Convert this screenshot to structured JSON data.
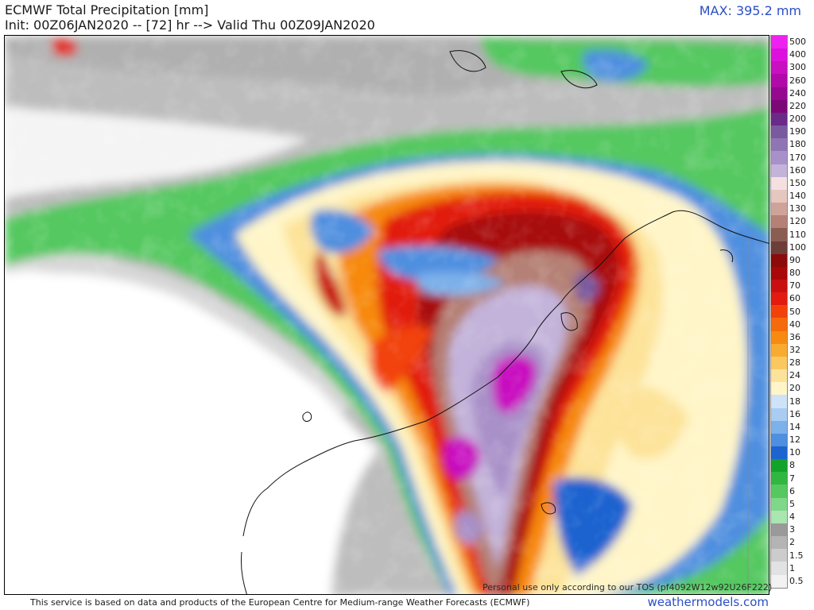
{
  "header": {
    "title": "ECMWF Total Precipitation [mm]",
    "subtitle": "Init: 00Z06JAN2020 -- [72] hr --> Valid Thu 00Z09JAN2020",
    "max_label": "MAX: 395.2 mm"
  },
  "map": {
    "watermark": "Personal use only according to our TOS (pf4092W12w92U26F222)"
  },
  "colorbar": {
    "levels": [
      "500",
      "400",
      "300",
      "260",
      "240",
      "220",
      "200",
      "190",
      "180",
      "170",
      "160",
      "150",
      "140",
      "130",
      "120",
      "110",
      "100",
      "90",
      "80",
      "70",
      "60",
      "50",
      "40",
      "36",
      "32",
      "28",
      "24",
      "20",
      "18",
      "16",
      "14",
      "12",
      "10",
      "8",
      "7",
      "6",
      "5",
      "4",
      "3",
      "2",
      "1.5",
      "1",
      "0.5"
    ],
    "colors": [
      "#ee22ee",
      "#dd11dd",
      "#c810c0",
      "#b00aa8",
      "#960890",
      "#7c0878",
      "#6a2a88",
      "#7a5a9e",
      "#8f75b3",
      "#a890c8",
      "#c3b3da",
      "#f4e0e0",
      "#e6c7c0",
      "#cfa39a",
      "#b58075",
      "#8a5c52",
      "#6d3e38",
      "#8c0a0a",
      "#a80808",
      "#c81010",
      "#e21a10",
      "#f2420a",
      "#f56a0a",
      "#f78a10",
      "#f9aa30",
      "#fbc860",
      "#fde39a",
      "#fff5c8",
      "#cfe3f8",
      "#a9cdf2",
      "#7db1ea",
      "#4f8fdf",
      "#1e64d0",
      "#12a32a",
      "#30b740",
      "#55c860",
      "#7fd88a",
      "#a9e6b0",
      "#9a9a9a",
      "#b4b4b4",
      "#cccccc",
      "#e2e2e2",
      "#f2f2f2"
    ]
  },
  "footer": {
    "notice": "This service is based on data and products of the European Centre for Medium-range Weather Forecasts (ECMWF)",
    "site": "weathermodels.com"
  }
}
